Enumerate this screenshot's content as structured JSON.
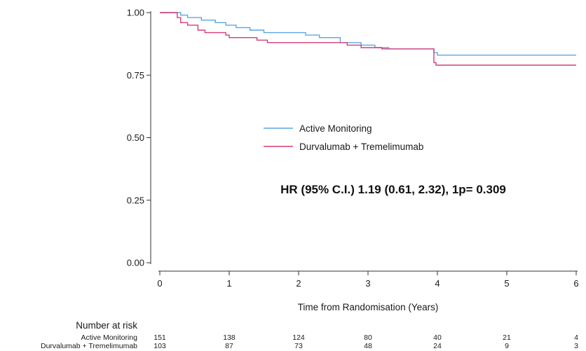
{
  "chart_data": {
    "type": "line",
    "subtype": "kaplan-meier",
    "title": "",
    "xlabel": "Time from Randomisation (Years)",
    "ylabel": "",
    "xlim": [
      0,
      6
    ],
    "ylim": [
      0,
      1
    ],
    "x_ticks": [
      "0",
      "1",
      "2",
      "3",
      "4",
      "5",
      "6"
    ],
    "y_ticks": [
      "0.00",
      "0.25",
      "0.50",
      "0.75",
      "1.00"
    ],
    "grid": false,
    "legend_position": "center",
    "annotation": "HR (95% C.I.) 1.19 (0.61, 2.32), 1p= 0.309",
    "series": [
      {
        "name": "Active Monitoring",
        "color": "#5aa7e0",
        "steps": [
          [
            0,
            1.0
          ],
          [
            0.3,
            0.99
          ],
          [
            0.4,
            0.98
          ],
          [
            0.6,
            0.97
          ],
          [
            0.8,
            0.96
          ],
          [
            0.95,
            0.95
          ],
          [
            1.1,
            0.94
          ],
          [
            1.3,
            0.93
          ],
          [
            1.5,
            0.92
          ],
          [
            2.1,
            0.91
          ],
          [
            2.3,
            0.9
          ],
          [
            2.6,
            0.88
          ],
          [
            2.9,
            0.87
          ],
          [
            3.1,
            0.86
          ],
          [
            3.3,
            0.855
          ],
          [
            3.95,
            0.84
          ],
          [
            4.0,
            0.83
          ],
          [
            6.0,
            0.83
          ]
        ]
      },
      {
        "name": "Durvalumab + Tremelimumab",
        "color": "#d63b7a",
        "steps": [
          [
            0,
            1.0
          ],
          [
            0.25,
            0.98
          ],
          [
            0.3,
            0.96
          ],
          [
            0.4,
            0.95
          ],
          [
            0.55,
            0.93
          ],
          [
            0.65,
            0.92
          ],
          [
            0.95,
            0.91
          ],
          [
            1.0,
            0.9
          ],
          [
            1.4,
            0.89
          ],
          [
            1.55,
            0.88
          ],
          [
            2.2,
            0.88
          ],
          [
            2.7,
            0.87
          ],
          [
            2.9,
            0.86
          ],
          [
            3.2,
            0.855
          ],
          [
            3.9,
            0.855
          ],
          [
            3.95,
            0.8
          ],
          [
            3.98,
            0.79
          ],
          [
            6.0,
            0.79
          ]
        ]
      }
    ]
  },
  "risk_table": {
    "title": "Number at risk",
    "time_points": [
      0,
      1,
      2,
      3,
      4,
      5,
      6
    ],
    "rows": [
      {
        "label": "Active Monitoring",
        "values": [
          "151",
          "138",
          "124",
          "80",
          "40",
          "21",
          "4"
        ]
      },
      {
        "label": "Durvalumab + Tremelimumab",
        "values": [
          "103",
          "87",
          "73",
          "48",
          "24",
          "9",
          "3"
        ]
      }
    ]
  }
}
